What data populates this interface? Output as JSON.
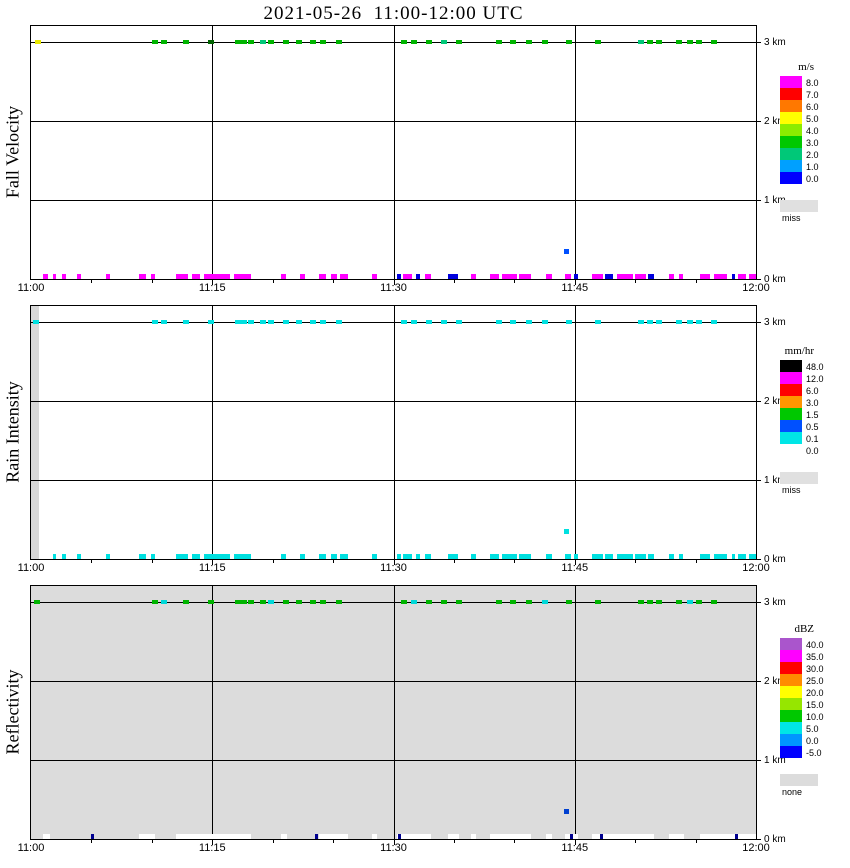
{
  "page": {
    "title": "2021-05-26  11:00-12:00 UTC"
  },
  "chart_data": [
    {
      "type": "heatmap",
      "title": "Fall Velocity",
      "units": "m/s",
      "x_range_minutes": [
        0,
        60
      ],
      "y_range_km": [
        0,
        3.2
      ],
      "x_tick_minutes": [
        0,
        15,
        30,
        45,
        60
      ],
      "x_tick_labels": [
        "11:00",
        "11:15",
        "11:30",
        "11:45",
        "12:00"
      ],
      "y_tick_km": [
        0,
        1,
        2,
        3
      ],
      "y_tick_labels": [
        "0 km",
        "1 km",
        "2 km",
        "3 km"
      ],
      "x_gridlines_minutes": [
        15,
        30,
        45
      ],
      "y_gridlines_km": [
        1,
        2,
        3
      ],
      "plot_background": "#ffffff",
      "top_marks_km": 3.0,
      "colorbar": {
        "title": "m/s",
        "entries": [
          {
            "label": "8.0",
            "color": "#ff00ff"
          },
          {
            "label": "7.0",
            "color": "#ff0000"
          },
          {
            "label": "6.0",
            "color": "#ff7800"
          },
          {
            "label": "5.0",
            "color": "#ffff00"
          },
          {
            "label": "4.0",
            "color": "#8cec00"
          },
          {
            "label": "3.0",
            "color": "#00c800"
          },
          {
            "label": "2.0",
            "color": "#00c878"
          },
          {
            "label": "1.0",
            "color": "#00a0ff"
          },
          {
            "label": "0.0",
            "color": "#0000ff"
          }
        ],
        "missing": {
          "label": "miss",
          "color": "#e0e0e0"
        }
      },
      "top_marks": [
        [
          0.6,
          "#e8e800"
        ],
        [
          10.3,
          "#00b400"
        ],
        [
          11.0,
          "#00b400"
        ],
        [
          12.8,
          "#00b400"
        ],
        [
          14.9,
          "#006400"
        ],
        [
          17.1,
          "#00b400"
        ],
        [
          17.6,
          "#00b400"
        ],
        [
          18.2,
          "#00b400"
        ],
        [
          19.2,
          "#00c878"
        ],
        [
          19.9,
          "#00b400"
        ],
        [
          21.1,
          "#00b400"
        ],
        [
          22.2,
          "#00b400"
        ],
        [
          23.3,
          "#00b400"
        ],
        [
          24.2,
          "#00b400"
        ],
        [
          25.5,
          "#00b400"
        ],
        [
          30.9,
          "#00b400"
        ],
        [
          31.7,
          "#00b400"
        ],
        [
          32.9,
          "#00b400"
        ],
        [
          34.2,
          "#00c878"
        ],
        [
          35.4,
          "#00b400"
        ],
        [
          38.7,
          "#00b400"
        ],
        [
          39.9,
          "#00b400"
        ],
        [
          41.2,
          "#00b400"
        ],
        [
          42.5,
          "#00b400"
        ],
        [
          44.5,
          "#00b400"
        ],
        [
          46.9,
          "#00b400"
        ],
        [
          50.5,
          "#00c878"
        ],
        [
          51.2,
          "#00b400"
        ],
        [
          52.0,
          "#00b400"
        ],
        [
          53.6,
          "#00b400"
        ],
        [
          54.5,
          "#00b400"
        ],
        [
          55.3,
          "#00b400"
        ],
        [
          56.5,
          "#00b400"
        ]
      ],
      "bottom_marks": [
        [
          1.0,
          0.4,
          "#ff00ff"
        ],
        [
          1.8,
          0.3,
          "#ff00ff"
        ],
        [
          2.6,
          0.3,
          "#ff00ff"
        ],
        [
          3.8,
          0.3,
          "#ff00ff"
        ],
        [
          6.2,
          0.3,
          "#ff00ff"
        ],
        [
          8.9,
          0.6,
          "#ff00ff"
        ],
        [
          9.9,
          0.4,
          "#ff00ff"
        ],
        [
          12.0,
          1.0,
          "#ff00ff"
        ],
        [
          13.3,
          0.7,
          "#ff00ff"
        ],
        [
          14.3,
          2.2,
          "#ff00ff"
        ],
        [
          16.8,
          1.4,
          "#ff00ff"
        ],
        [
          20.7,
          0.4,
          "#ff00ff"
        ],
        [
          22.3,
          0.4,
          "#ff00ff"
        ],
        [
          23.8,
          0.6,
          "#ff00ff"
        ],
        [
          24.8,
          0.5,
          "#ff00ff"
        ],
        [
          25.6,
          0.6,
          "#ff00ff"
        ],
        [
          28.2,
          0.4,
          "#ff00ff"
        ],
        [
          30.3,
          0.3,
          "#0000dd"
        ],
        [
          30.8,
          0.7,
          "#ff00ff"
        ],
        [
          31.9,
          0.3,
          "#0000dd"
        ],
        [
          32.6,
          0.5,
          "#ff00ff"
        ],
        [
          34.5,
          0.8,
          "#0000dd"
        ],
        [
          36.4,
          0.4,
          "#ff00ff"
        ],
        [
          38.0,
          0.7,
          "#ff00ff"
        ],
        [
          39.0,
          1.2,
          "#ff00ff"
        ],
        [
          40.4,
          1.0,
          "#ff00ff"
        ],
        [
          42.6,
          0.5,
          "#ff00ff"
        ],
        [
          44.2,
          0.5,
          "#ff00ff"
        ],
        [
          44.9,
          0.4,
          "#0000dd"
        ],
        [
          46.4,
          0.9,
          "#ff00ff"
        ],
        [
          47.5,
          0.7,
          "#0000dd"
        ],
        [
          48.5,
          1.3,
          "#ff00ff"
        ],
        [
          50.0,
          0.9,
          "#ff00ff"
        ],
        [
          51.1,
          0.5,
          "#0000dd"
        ],
        [
          52.8,
          0.4,
          "#ff00ff"
        ],
        [
          53.6,
          0.4,
          "#ff00ff"
        ],
        [
          55.4,
          0.8,
          "#ff00ff"
        ],
        [
          56.5,
          1.1,
          "#ff00ff"
        ],
        [
          58.0,
          0.3,
          "#0000dd"
        ],
        [
          58.5,
          0.7,
          "#ff00ff"
        ],
        [
          59.4,
          0.6,
          "#ff00ff"
        ]
      ],
      "mid_points": [
        [
          44.3,
          0.35,
          "#0050ff"
        ]
      ],
      "regions": []
    },
    {
      "type": "heatmap",
      "title": "Rain Intensity",
      "units": "mm/hr",
      "x_range_minutes": [
        0,
        60
      ],
      "y_range_km": [
        0,
        3.2
      ],
      "x_tick_minutes": [
        0,
        15,
        30,
        45,
        60
      ],
      "x_tick_labels": [
        "11:00",
        "11:15",
        "11:30",
        "11:45",
        "12:00"
      ],
      "y_tick_km": [
        0,
        1,
        2,
        3
      ],
      "y_tick_labels": [
        "0 km",
        "1 km",
        "2 km",
        "3 km"
      ],
      "x_gridlines_minutes": [
        15,
        30,
        45
      ],
      "y_gridlines_km": [
        1,
        2,
        3
      ],
      "plot_background": "#ffffff",
      "top_marks_km": 3.0,
      "colorbar": {
        "title": "mm/hr",
        "entries": [
          {
            "label": "48.0",
            "color": "#000000"
          },
          {
            "label": "12.0",
            "color": "#ff00ff"
          },
          {
            "label": "6.0",
            "color": "#ff0000"
          },
          {
            "label": "3.0",
            "color": "#ff9600"
          },
          {
            "label": "1.5",
            "color": "#00c800"
          },
          {
            "label": "0.5",
            "color": "#0050ff"
          },
          {
            "label": "0.1",
            "color": "#00e6e6"
          },
          {
            "label": "0.0",
            "color": "#ffffff"
          }
        ],
        "missing": {
          "label": "miss",
          "color": "#e0e0e0"
        }
      },
      "top_marks": [
        [
          0.4,
          "#00e0e0"
        ],
        [
          10.3,
          "#00e0e0"
        ],
        [
          11.0,
          "#00e0e0"
        ],
        [
          12.8,
          "#00e0e0"
        ],
        [
          14.9,
          "#00e0e0"
        ],
        [
          17.1,
          "#00e0e0"
        ],
        [
          17.6,
          "#00e0e0"
        ],
        [
          18.2,
          "#00e0e0"
        ],
        [
          19.2,
          "#00e0e0"
        ],
        [
          19.9,
          "#00e0e0"
        ],
        [
          21.1,
          "#00e0e0"
        ],
        [
          22.2,
          "#00e0e0"
        ],
        [
          23.3,
          "#00e0e0"
        ],
        [
          24.2,
          "#00e0e0"
        ],
        [
          25.5,
          "#00e0e0"
        ],
        [
          30.9,
          "#00e0e0"
        ],
        [
          31.7,
          "#00e0e0"
        ],
        [
          32.9,
          "#00e0e0"
        ],
        [
          34.2,
          "#00e0e0"
        ],
        [
          35.4,
          "#00e0e0"
        ],
        [
          38.7,
          "#00e0e0"
        ],
        [
          39.9,
          "#00e0e0"
        ],
        [
          41.2,
          "#00e0e0"
        ],
        [
          42.5,
          "#00e0e0"
        ],
        [
          44.5,
          "#00e0e0"
        ],
        [
          46.9,
          "#00e0e0"
        ],
        [
          50.5,
          "#00e0e0"
        ],
        [
          51.2,
          "#00e0e0"
        ],
        [
          52.0,
          "#00e0e0"
        ],
        [
          53.6,
          "#00e0e0"
        ],
        [
          54.5,
          "#00e0e0"
        ],
        [
          55.3,
          "#00e0e0"
        ],
        [
          56.5,
          "#00e0e0"
        ]
      ],
      "bottom_marks": [
        [
          1.8,
          0.3,
          "#00e0e0"
        ],
        [
          2.6,
          0.3,
          "#00e0e0"
        ],
        [
          3.8,
          0.3,
          "#00e0e0"
        ],
        [
          6.2,
          0.3,
          "#00e0e0"
        ],
        [
          8.9,
          0.6,
          "#00e0e0"
        ],
        [
          9.9,
          0.4,
          "#00e0e0"
        ],
        [
          12.0,
          1.0,
          "#00e0e0"
        ],
        [
          13.3,
          0.7,
          "#00e0e0"
        ],
        [
          14.3,
          2.2,
          "#00e0e0"
        ],
        [
          16.8,
          1.4,
          "#00e0e0"
        ],
        [
          20.7,
          0.4,
          "#00e0e0"
        ],
        [
          22.3,
          0.4,
          "#00e0e0"
        ],
        [
          23.8,
          0.6,
          "#00e0e0"
        ],
        [
          24.8,
          0.5,
          "#00e0e0"
        ],
        [
          25.6,
          0.6,
          "#00e0e0"
        ],
        [
          28.2,
          0.4,
          "#00e0e0"
        ],
        [
          30.3,
          0.3,
          "#00e0e0"
        ],
        [
          30.8,
          0.7,
          "#00e0e0"
        ],
        [
          31.9,
          0.3,
          "#00e0e0"
        ],
        [
          32.6,
          0.5,
          "#00e0e0"
        ],
        [
          34.5,
          0.8,
          "#00e0e0"
        ],
        [
          36.4,
          0.4,
          "#00e0e0"
        ],
        [
          38.0,
          0.7,
          "#00e0e0"
        ],
        [
          39.0,
          1.2,
          "#00e0e0"
        ],
        [
          40.4,
          1.0,
          "#00e0e0"
        ],
        [
          42.6,
          0.5,
          "#00e0e0"
        ],
        [
          44.2,
          0.5,
          "#00e0e0"
        ],
        [
          44.9,
          0.4,
          "#00e0e0"
        ],
        [
          46.4,
          0.9,
          "#00e0e0"
        ],
        [
          47.5,
          0.7,
          "#00e0e0"
        ],
        [
          48.5,
          1.3,
          "#00e0e0"
        ],
        [
          50.0,
          0.9,
          "#00e0e0"
        ],
        [
          51.1,
          0.5,
          "#00e0e0"
        ],
        [
          52.8,
          0.4,
          "#00e0e0"
        ],
        [
          53.6,
          0.4,
          "#00e0e0"
        ],
        [
          55.4,
          0.8,
          "#00e0e0"
        ],
        [
          56.5,
          1.1,
          "#00e0e0"
        ],
        [
          58.0,
          0.3,
          "#00e0e0"
        ],
        [
          58.5,
          0.7,
          "#00e0e0"
        ],
        [
          59.4,
          0.6,
          "#00e0e0"
        ]
      ],
      "mid_points": [
        [
          44.3,
          0.35,
          "#00e0e0"
        ]
      ],
      "regions": [
        {
          "t0": 0,
          "t1": 0.7,
          "h0": 0,
          "h1": 3.2,
          "c": "#d8d8d8"
        }
      ]
    },
    {
      "type": "heatmap",
      "title": "Reflectivity",
      "units": "dBZ",
      "x_range_minutes": [
        0,
        60
      ],
      "y_range_km": [
        0,
        3.2
      ],
      "x_tick_minutes": [
        0,
        15,
        30,
        45,
        60
      ],
      "x_tick_labels": [
        "11:00",
        "11:15",
        "11:30",
        "11:45",
        "12:00"
      ],
      "y_tick_km": [
        0,
        1,
        2,
        3
      ],
      "y_tick_labels": [
        "0 km",
        "1 km",
        "2 km",
        "3 km"
      ],
      "x_gridlines_minutes": [
        15,
        30,
        45
      ],
      "y_gridlines_km": [
        1,
        2,
        3
      ],
      "plot_background": "#dcdcdc",
      "top_marks_km": 3.0,
      "colorbar": {
        "title": "dBZ",
        "entries": [
          {
            "label": "40.0",
            "color": "#aa55cc"
          },
          {
            "label": "35.0",
            "color": "#ff00ff"
          },
          {
            "label": "30.0",
            "color": "#ff0000"
          },
          {
            "label": "25.0",
            "color": "#ff8c00"
          },
          {
            "label": "20.0",
            "color": "#ffff00"
          },
          {
            "label": "15.0",
            "color": "#96e600"
          },
          {
            "label": "10.0",
            "color": "#00c800"
          },
          {
            "label": "5.0",
            "color": "#00e6e6"
          },
          {
            "label": "0.0",
            "color": "#0096ff"
          },
          {
            "label": "-5.0",
            "color": "#0000ff"
          }
        ],
        "missing": {
          "label": "none",
          "color": "#dcdcdc"
        }
      },
      "top_marks": [
        [
          0.5,
          "#00b400"
        ],
        [
          10.3,
          "#00b400"
        ],
        [
          11.0,
          "#00d8d8"
        ],
        [
          12.8,
          "#00b400"
        ],
        [
          14.9,
          "#00b400"
        ],
        [
          17.1,
          "#00b400"
        ],
        [
          17.6,
          "#00b400"
        ],
        [
          18.2,
          "#00b400"
        ],
        [
          19.2,
          "#00b400"
        ],
        [
          19.9,
          "#00d8d8"
        ],
        [
          21.1,
          "#00b400"
        ],
        [
          22.2,
          "#00b400"
        ],
        [
          23.3,
          "#00b400"
        ],
        [
          24.2,
          "#00b400"
        ],
        [
          25.5,
          "#00b400"
        ],
        [
          30.9,
          "#00b400"
        ],
        [
          31.7,
          "#00d8d8"
        ],
        [
          32.9,
          "#00b400"
        ],
        [
          34.2,
          "#00b400"
        ],
        [
          35.4,
          "#00b400"
        ],
        [
          38.7,
          "#00b400"
        ],
        [
          39.9,
          "#00b400"
        ],
        [
          41.2,
          "#00b400"
        ],
        [
          42.5,
          "#00d8d8"
        ],
        [
          44.5,
          "#00b400"
        ],
        [
          46.9,
          "#00b400"
        ],
        [
          50.5,
          "#00b400"
        ],
        [
          51.2,
          "#00b400"
        ],
        [
          52.0,
          "#00b400"
        ],
        [
          53.6,
          "#00b400"
        ],
        [
          54.5,
          "#00d8d8"
        ],
        [
          55.3,
          "#00b400"
        ],
        [
          56.5,
          "#00b400"
        ]
      ],
      "bottom_marks": [
        [
          1.0,
          0.6,
          "#ffffff"
        ],
        [
          8.9,
          1.4,
          "#ffffff"
        ],
        [
          12.0,
          6.2,
          "#ffffff"
        ],
        [
          20.7,
          0.5,
          "#ffffff"
        ],
        [
          23.8,
          2.4,
          "#ffffff"
        ],
        [
          28.2,
          0.4,
          "#ffffff"
        ],
        [
          30.3,
          2.8,
          "#ffffff"
        ],
        [
          34.5,
          0.9,
          "#ffffff"
        ],
        [
          36.4,
          0.4,
          "#ffffff"
        ],
        [
          38.0,
          3.4,
          "#ffffff"
        ],
        [
          42.6,
          0.5,
          "#ffffff"
        ],
        [
          44.2,
          1.1,
          "#ffffff"
        ],
        [
          46.4,
          5.2,
          "#ffffff"
        ],
        [
          52.8,
          1.2,
          "#ffffff"
        ],
        [
          55.4,
          4.6,
          "#ffffff"
        ],
        [
          5.0,
          0.25,
          "#000090"
        ],
        [
          23.5,
          0.25,
          "#000090"
        ],
        [
          30.4,
          0.25,
          "#000090"
        ],
        [
          44.6,
          0.25,
          "#000090"
        ],
        [
          47.1,
          0.25,
          "#000090"
        ],
        [
          58.3,
          0.25,
          "#000090"
        ]
      ],
      "mid_points": [
        [
          44.3,
          0.35,
          "#0040d0"
        ]
      ],
      "regions": []
    }
  ]
}
